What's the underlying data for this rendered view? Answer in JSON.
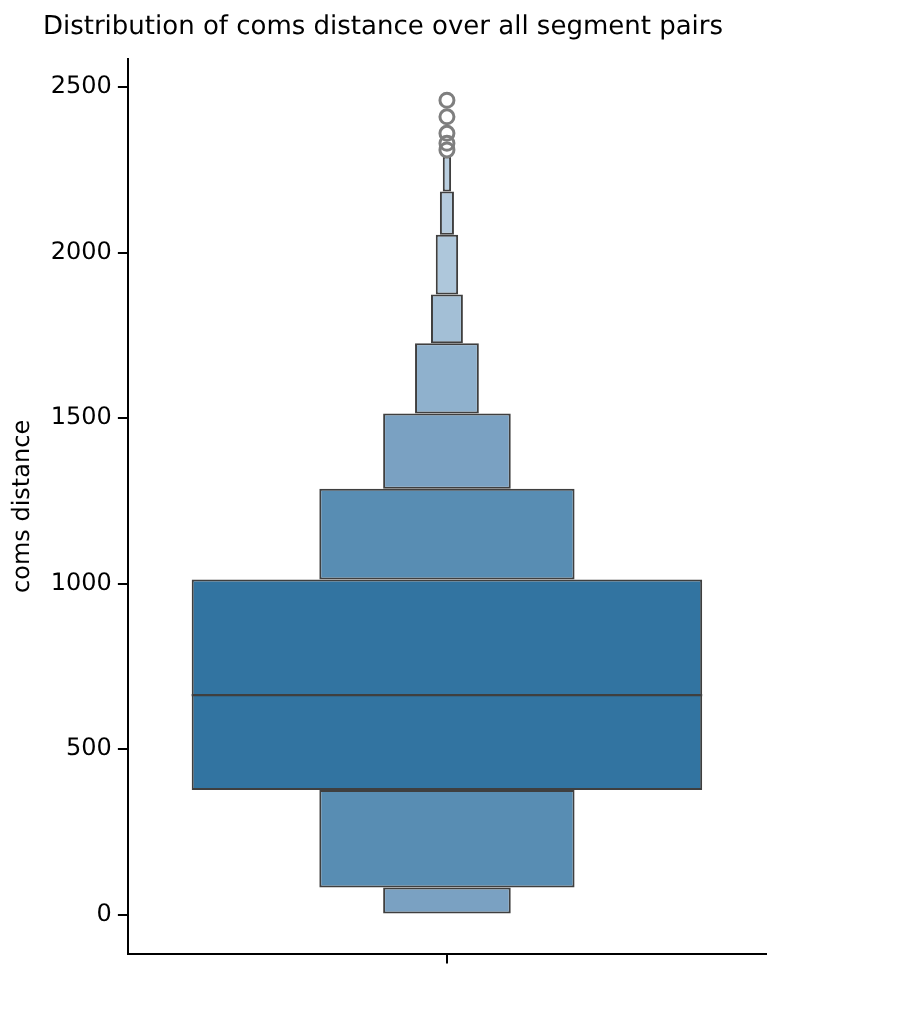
{
  "chart_data": {
    "type": "bar",
    "title": "Distribution of coms distance over all segment pairs",
    "ylabel": "coms distance",
    "categories": [
      null
    ],
    "series": [
      {
        "color": "#3274a1",
        "base": [
          376
        ],
        "values": [
          636
        ]
      },
      {
        "color": "#588db3",
        "base": [
          1012
        ],
        "values": [
          274
        ]
      },
      {
        "color": "#588db3",
        "base": [
          82
        ],
        "values": [
          294
        ]
      },
      {
        "color": "#7aa1c2",
        "base": [
          1286
        ],
        "values": [
          228
        ]
      },
      {
        "color": "#7aa1c2",
        "base": [
          0
        ],
        "values": [
          82
        ]
      },
      {
        "color": "#8fb1cd",
        "base": [
          1514
        ],
        "values": [
          212
        ]
      },
      {
        "color": "#a3bfd6",
        "base": [
          1726
        ],
        "values": [
          147
        ]
      },
      {
        "color": "#aec7db",
        "base": [
          1873
        ],
        "values": [
          181
        ]
      },
      {
        "color": "#b5cbde",
        "base": [
          2054
        ],
        "values": [
          130
        ]
      },
      {
        "color": "#bacfe0",
        "base": [
          2184
        ],
        "values": [
          106
        ]
      },
      {
        "type": "scatter",
        "color": "#7f7f7f",
        "values": [
          2310
        ]
      },
      {
        "type": "scatter",
        "color": "#7f7f7f",
        "values": [
          2330
        ]
      },
      {
        "type": "scatter",
        "color": "#7f7f7f",
        "values": [
          2360
        ]
      },
      {
        "type": "scatter",
        "color": "#7f7f7f",
        "values": [
          2410
        ]
      },
      {
        "type": "scatter",
        "color": "#7f7f7f",
        "values": [
          2460
        ]
      }
    ],
    "ref_lines": [
      {
        "axis": "y",
        "value": 663,
        "color": "#3f3f3f"
      }
    ],
    "ylim": [
      -118,
      2584
    ],
    "yticks": [
      0,
      500,
      1000,
      1500,
      2000,
      2500
    ],
    "grid": false,
    "legend": false,
    "marker": "circle"
  }
}
